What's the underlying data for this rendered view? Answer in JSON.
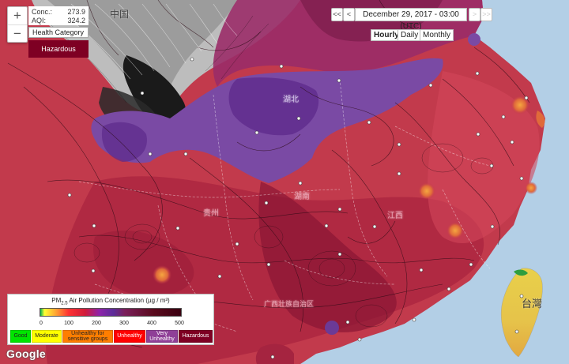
{
  "readout": {
    "conc_label": "Conc.:",
    "conc_value": "273.9",
    "aqi_label": "AQI:",
    "aqi_value": "324.2",
    "mode_selected": "Health Category",
    "category": "Hazardous",
    "category_color": "#7e0023"
  },
  "zoom": {
    "in_label": "+",
    "out_label": "−"
  },
  "date_nav": {
    "first_label": "<<",
    "prev_label": "<",
    "date_text": "December 29, 2017 - 03:00 (UTC)",
    "next_label": ">",
    "last_label": ">>",
    "granularity": [
      "Hourly",
      "Daily",
      "Monthly"
    ],
    "active": "Hourly"
  },
  "legend": {
    "title_prefix": "PM",
    "title_sub": "2.5",
    "title_rest": " Air Pollution Concentration (µg / m³)",
    "ticks": [
      "0",
      "100",
      "200",
      "300",
      "400",
      "500"
    ],
    "categories": [
      {
        "label": "Good",
        "color": "#00e400"
      },
      {
        "label": "Moderate",
        "color": "#ffff00"
      },
      {
        "label": "Unhealthy for sensitive groups",
        "color": "#ff7e00"
      },
      {
        "label": "Unhealthy",
        "color": "#ff0000"
      },
      {
        "label": "Very Unhealthy",
        "color": "#8f3f97"
      },
      {
        "label": "Hazardous",
        "color": "#7e0023"
      }
    ]
  },
  "map": {
    "labels": [
      {
        "text": "中国"
      },
      {
        "text": "台灣"
      },
      {
        "text": "湖北"
      },
      {
        "text": "湖南"
      },
      {
        "text": "江西"
      },
      {
        "text": "贵州"
      },
      {
        "text": "广西壮族自治区"
      }
    ]
  },
  "attribution": "Google"
}
